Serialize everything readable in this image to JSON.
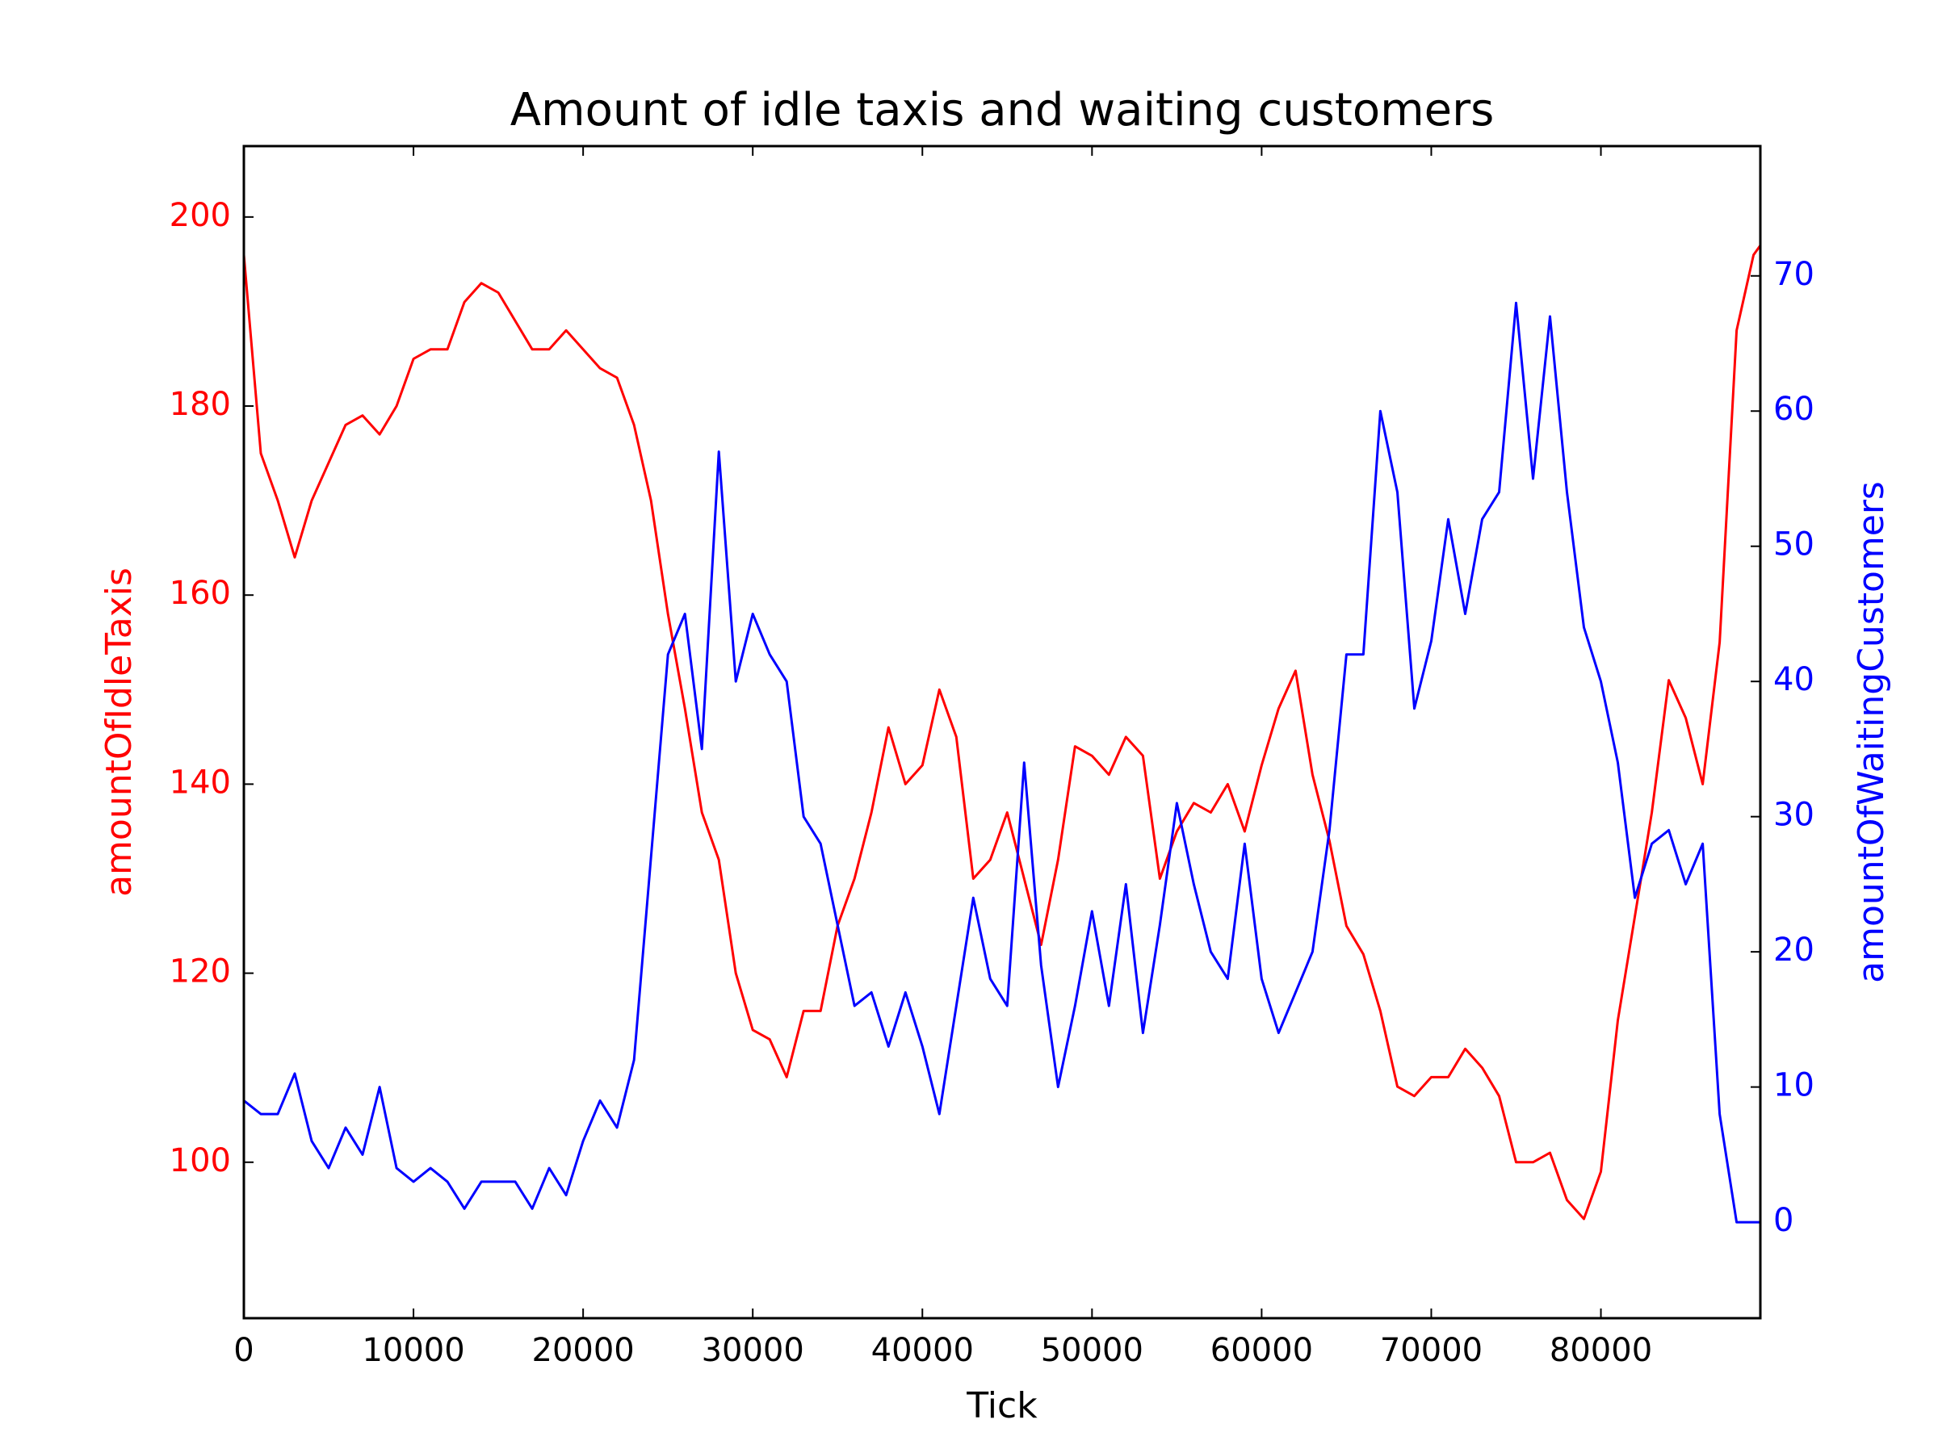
{
  "chart_data": {
    "type": "line",
    "title": "Amount of idle taxis and waiting customers",
    "x_label": "Tick",
    "y_label": "amountOfIdleTaxis",
    "y2_label": "amountOfWaitingCustomers",
    "x": [
      0,
      1000,
      2000,
      3000,
      4000,
      5000,
      6000,
      7000,
      8000,
      9000,
      10000,
      11000,
      12000,
      13000,
      14000,
      15000,
      16000,
      17000,
      18000,
      19000,
      20000,
      21000,
      22000,
      23000,
      24000,
      25000,
      26000,
      27000,
      28000,
      29000,
      30000,
      31000,
      32000,
      33000,
      34000,
      35000,
      36000,
      37000,
      38000,
      39000,
      40000,
      41000,
      42000,
      43000,
      44000,
      45000,
      46000,
      47000,
      48000,
      49000,
      50000,
      51000,
      52000,
      53000,
      54000,
      55000,
      56000,
      57000,
      58000,
      59000,
      60000,
      61000,
      62000,
      63000,
      64000,
      65000,
      66000,
      67000,
      68000,
      69000,
      70000,
      71000,
      72000,
      73000,
      74000,
      75000,
      76000,
      77000,
      78000,
      79000,
      80000,
      81000,
      82000,
      83000,
      84000,
      85000,
      86000,
      87000,
      88000,
      89000,
      89400
    ],
    "series": [
      {
        "name": "amountOfIdleTaxis",
        "color": "#ff0000",
        "axis": "y",
        "values": [
          196,
          175,
          170,
          164,
          170,
          174,
          178,
          179,
          177,
          180,
          185,
          186,
          186,
          191,
          193,
          192,
          189,
          186,
          186,
          188,
          186,
          184,
          183,
          178,
          170,
          158,
          148,
          137,
          132,
          120,
          114,
          113,
          109,
          116,
          116,
          125,
          130,
          137,
          146,
          140,
          142,
          150,
          145,
          130,
          132,
          137,
          130,
          123,
          132,
          144,
          143,
          141,
          145,
          143,
          130,
          135,
          138,
          137,
          140,
          135,
          142,
          148,
          152,
          141,
          134,
          125,
          122,
          116,
          108,
          107,
          109,
          109,
          112,
          110,
          107,
          100,
          100,
          101,
          96,
          94,
          99,
          115,
          126,
          137,
          151,
          147,
          140,
          155,
          188,
          196,
          197
        ]
      },
      {
        "name": "amountOfWaitingCustomers",
        "color": "#0000ff",
        "axis": "y2",
        "values": [
          9,
          8,
          8,
          11,
          6,
          4,
          7,
          5,
          10,
          4,
          3,
          4,
          3,
          1,
          3,
          3,
          3,
          1,
          4,
          2,
          6,
          9,
          7,
          12,
          27,
          42,
          45,
          35,
          57,
          40,
          45,
          42,
          40,
          30,
          28,
          22,
          16,
          17,
          13,
          17,
          13,
          8,
          16,
          24,
          18,
          16,
          34,
          19,
          10,
          16,
          23,
          16,
          25,
          14,
          22,
          31,
          25,
          20,
          18,
          28,
          18,
          14,
          17,
          20,
          29,
          42,
          42,
          60,
          54,
          38,
          43,
          52,
          45,
          52,
          54,
          68,
          55,
          67,
          54,
          44,
          40,
          34,
          24,
          28,
          29,
          25,
          28,
          8,
          0,
          0,
          0
        ]
      }
    ],
    "xlim": [
      0,
      89400
    ],
    "xticks": [
      0,
      10000,
      20000,
      30000,
      40000,
      50000,
      60000,
      70000,
      80000
    ],
    "ylim": [
      83.5,
      207.5
    ],
    "yticks": [
      100,
      120,
      140,
      160,
      180,
      200
    ],
    "y2lim": [
      -7.1,
      79.6
    ],
    "y2ticks": [
      0,
      10,
      20,
      30,
      40,
      50,
      60,
      70
    ],
    "grid": false
  }
}
